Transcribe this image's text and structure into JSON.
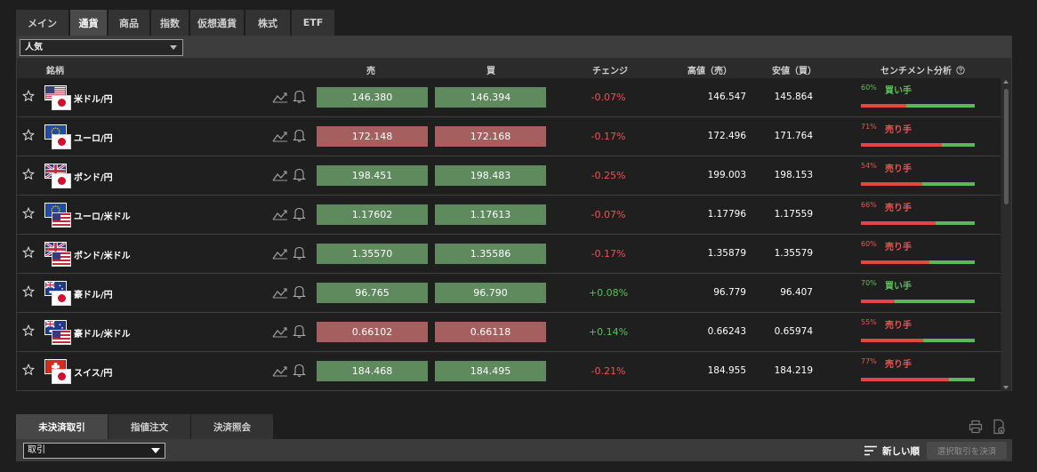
{
  "tabs": [
    "メイン",
    "通貨",
    "商品",
    "指数",
    "仮想通貨",
    "株式",
    "ETF"
  ],
  "active_tab": "通貨",
  "filter": {
    "selected": "人気"
  },
  "columns": {
    "symbol": "銘柄",
    "sell": "売",
    "buy": "買",
    "change": "チェンジ",
    "high": "高値（売）",
    "low": "安値（買）",
    "sentiment": "センチメント分析"
  },
  "icons": {
    "star": "star-icon",
    "chart": "chart-icon",
    "bell": "bell-icon",
    "help": "question-circle-icon",
    "print": "print-icon",
    "export": "export-icon",
    "sort": "sort-lines-icon"
  },
  "colors": {
    "price_up": "#5e8a5d",
    "price_down": "#a65f5f",
    "negative": "#f25252",
    "positive": "#59c159"
  },
  "rows": [
    {
      "symbol": "米ドル/円",
      "flags": [
        "us",
        "jp"
      ],
      "sell": "146.380",
      "buy": "146.394",
      "direction": "up",
      "change": "-0.07%",
      "high": "146.547",
      "low": "145.864",
      "sentiment_pct": "60%",
      "sentiment_label": "買い手",
      "sentiment_side": "buy",
      "sell_share": 0.4
    },
    {
      "symbol": "ユーロ/円",
      "flags": [
        "eu",
        "jp"
      ],
      "sell": "172.148",
      "buy": "172.168",
      "direction": "down",
      "change": "-0.17%",
      "high": "172.496",
      "low": "171.764",
      "sentiment_pct": "71%",
      "sentiment_label": "売り手",
      "sentiment_side": "sell",
      "sell_share": 0.71
    },
    {
      "symbol": "ポンド/円",
      "flags": [
        "gb",
        "jp"
      ],
      "sell": "198.451",
      "buy": "198.483",
      "direction": "up",
      "change": "-0.25%",
      "high": "199.003",
      "low": "198.153",
      "sentiment_pct": "54%",
      "sentiment_label": "売り手",
      "sentiment_side": "sell",
      "sell_share": 0.54
    },
    {
      "symbol": "ユーロ/米ドル",
      "flags": [
        "eu",
        "us"
      ],
      "sell": "1.17602",
      "buy": "1.17613",
      "direction": "up",
      "change": "-0.07%",
      "high": "1.17796",
      "low": "1.17559",
      "sentiment_pct": "66%",
      "sentiment_label": "売り手",
      "sentiment_side": "sell",
      "sell_share": 0.66
    },
    {
      "symbol": "ポンド/米ドル",
      "flags": [
        "gb",
        "us"
      ],
      "sell": "1.35570",
      "buy": "1.35586",
      "direction": "up",
      "change": "-0.17%",
      "high": "1.35879",
      "low": "1.35579",
      "sentiment_pct": "60%",
      "sentiment_label": "売り手",
      "sentiment_side": "sell",
      "sell_share": 0.6
    },
    {
      "symbol": "豪ドル/円",
      "flags": [
        "au",
        "jp"
      ],
      "sell": "96.765",
      "buy": "96.790",
      "direction": "up",
      "change": "+0.08%",
      "high": "96.779",
      "low": "96.407",
      "sentiment_pct": "70%",
      "sentiment_label": "買い手",
      "sentiment_side": "buy",
      "sell_share": 0.3
    },
    {
      "symbol": "豪ドル/米ドル",
      "flags": [
        "au",
        "us"
      ],
      "sell": "0.66102",
      "buy": "0.66118",
      "direction": "down",
      "change": "+0.14%",
      "high": "0.66243",
      "low": "0.65974",
      "sentiment_pct": "55%",
      "sentiment_label": "売り手",
      "sentiment_side": "sell",
      "sell_share": 0.55
    },
    {
      "symbol": "スイス/円",
      "flags": [
        "ch",
        "jp"
      ],
      "sell": "184.468",
      "buy": "184.495",
      "direction": "up",
      "change": "-0.21%",
      "high": "184.955",
      "low": "184.219",
      "sentiment_pct": "77%",
      "sentiment_label": "売り手",
      "sentiment_side": "sell",
      "sell_share": 0.77
    }
  ],
  "bottom_tabs": [
    "未決済取引",
    "指値注文",
    "決済照会"
  ],
  "bottom_active": "未決済取引",
  "bottom_filter": {
    "selected": "取引"
  },
  "sort_label": "新しい順",
  "settle_button": "選択取引を決済"
}
